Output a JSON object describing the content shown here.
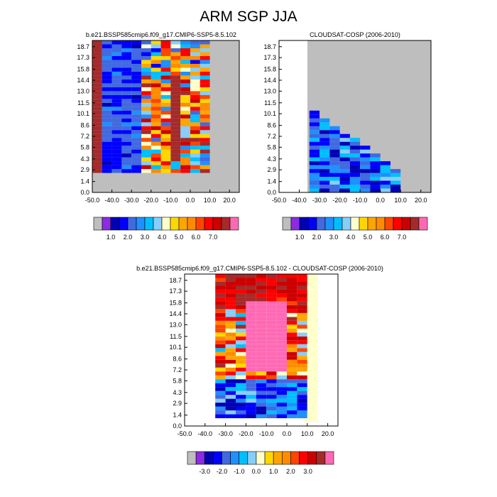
{
  "figure": {
    "title": "ARM SGP JJA"
  },
  "colors": {
    "full": [
      "#bebebe",
      "#8b2be2",
      "#0000b4",
      "#0000ff",
      "#4169e1",
      "#1e90ff",
      "#00bfff",
      "#87cefa",
      "#ffffcc",
      "#ffd700",
      "#ffa500",
      "#ff8c00",
      "#ff4500",
      "#ff0000",
      "#cd0000",
      "#a52a2a",
      "#ff69b4"
    ],
    "diff": [
      "#bebebe",
      "#8b2be2",
      "#0000b4",
      "#0000ff",
      "#4169e1",
      "#1e90ff",
      "#00bfff",
      "#87cefa",
      "#ffffcc",
      "#ffd700",
      "#ffa500",
      "#ff8c00",
      "#ff4500",
      "#ff0000",
      "#cd0000",
      "#a52a2a",
      "#ff69b4"
    ]
  },
  "chart_data": [
    {
      "id": "model",
      "type": "heatmap",
      "title": "b.e21.BSSP585cmip6.f09_g17.CMIP6-SSP5-8.5.102",
      "xlim": [
        -50,
        25
      ],
      "ylim": [
        0,
        19.5
      ],
      "xticks": [
        "-50.0",
        "-40.0",
        "-30.0",
        "-20.0",
        "-10.0",
        "0.0",
        "10.0",
        "20.0"
      ],
      "xtick_values": [
        -50,
        -40,
        -30,
        -20,
        -10,
        0,
        10,
        20
      ],
      "yticks": [
        "0.0",
        "1.4",
        "2.9",
        "4.3",
        "5.8",
        "7.2",
        "8.6",
        "10.1",
        "11.5",
        "13.0",
        "14.4",
        "15.8",
        "17.3",
        "18.7"
      ],
      "x_bins": [
        -50,
        -45,
        -40,
        -35,
        -30,
        -25,
        -20,
        -15,
        -10,
        -5,
        0,
        5,
        10,
        15,
        20,
        25
      ],
      "y_bins": [
        0,
        0.5,
        1,
        1.5,
        2,
        2.5,
        3,
        3.5,
        4,
        4.5,
        5,
        5.5,
        6,
        6.5,
        7,
        7.5,
        8,
        8.5,
        9,
        9.5,
        10,
        10.5,
        11,
        11.5,
        12,
        12.5,
        13,
        13.5,
        14,
        14.5,
        15,
        15.5,
        16,
        16.5,
        17,
        17.5,
        18,
        18.5,
        19,
        19.5
      ],
      "colorbar_labels": [
        "1.0",
        "2.0",
        "3.0",
        "4.0",
        "5.0",
        "6.0",
        "7.0"
      ]
    },
    {
      "id": "cloudsat",
      "type": "heatmap",
      "title": "CLOUDSAT-COSP (2006-2010)",
      "xlim": [
        -50,
        25
      ],
      "ylim": [
        0,
        19.5
      ],
      "xticks": [
        "-50.0",
        "-40.0",
        "-30.0",
        "-20.0",
        "-10.0",
        "0.0",
        "10.0",
        "20.0"
      ],
      "xtick_values": [
        -50,
        -40,
        -30,
        -20,
        -10,
        0,
        10,
        20
      ],
      "yticks": [
        "0.0",
        "1.4",
        "2.9",
        "4.3",
        "5.8",
        "7.2",
        "8.6",
        "10.1",
        "11.5",
        "13.0",
        "14.4",
        "15.8",
        "17.3",
        "18.7"
      ],
      "x_bins": [
        -50,
        -45,
        -40,
        -35,
        -30,
        -25,
        -20,
        -15,
        -10,
        -5,
        0,
        5,
        10,
        15,
        20,
        25
      ],
      "y_bins": [
        0,
        0.5,
        1,
        1.5,
        2,
        2.5,
        3,
        3.5,
        4,
        4.5,
        5,
        5.5,
        6,
        6.5,
        7,
        7.5,
        8,
        8.5,
        9,
        9.5,
        10,
        10.5,
        11,
        11.5,
        12,
        12.5,
        13,
        13.5,
        14,
        14.5,
        15,
        15.5,
        16,
        16.5,
        17,
        17.5,
        18,
        18.5,
        19,
        19.5
      ],
      "colorbar_labels": [
        "1.0",
        "2.0",
        "3.0",
        "4.0",
        "5.0",
        "6.0",
        "7.0"
      ]
    },
    {
      "id": "difference",
      "type": "heatmap",
      "title": "b.e21.BSSP585cmip6.f09_g17.CMIP6-SSP5-8.5.102 - CLOUDSAT-COSP (2006-2010)",
      "xlim": [
        -50,
        25
      ],
      "ylim": [
        0,
        19.5
      ],
      "xticks": [
        "-50.0",
        "-40.0",
        "-30.0",
        "-20.0",
        "-10.0",
        "0.0",
        "10.0",
        "20.0"
      ],
      "xtick_values": [
        -50,
        -40,
        -30,
        -20,
        -10,
        0,
        10,
        20
      ],
      "yticks": [
        "0.0",
        "1.4",
        "2.9",
        "4.3",
        "5.8",
        "7.2",
        "8.6",
        "10.1",
        "11.5",
        "13.0",
        "14.4",
        "15.8",
        "17.3",
        "18.7"
      ],
      "x_bins": [
        -50,
        -45,
        -40,
        -35,
        -30,
        -25,
        -20,
        -15,
        -10,
        -5,
        0,
        5,
        10,
        15,
        20,
        25
      ],
      "y_bins": [
        0,
        0.5,
        1,
        1.5,
        2,
        2.5,
        3,
        3.5,
        4,
        4.5,
        5,
        5.5,
        6,
        6.5,
        7,
        7.5,
        8,
        8.5,
        9,
        9.5,
        10,
        10.5,
        11,
        11.5,
        12,
        12.5,
        13,
        13.5,
        14,
        14.5,
        15,
        15.5,
        16,
        16.5,
        17,
        17.5,
        18,
        18.5,
        19,
        19.5
      ],
      "colorbar_labels": [
        "-3.0",
        "-2.0",
        "-1.0",
        "0.0",
        "1.0",
        "2.0",
        "3.0"
      ]
    }
  ]
}
